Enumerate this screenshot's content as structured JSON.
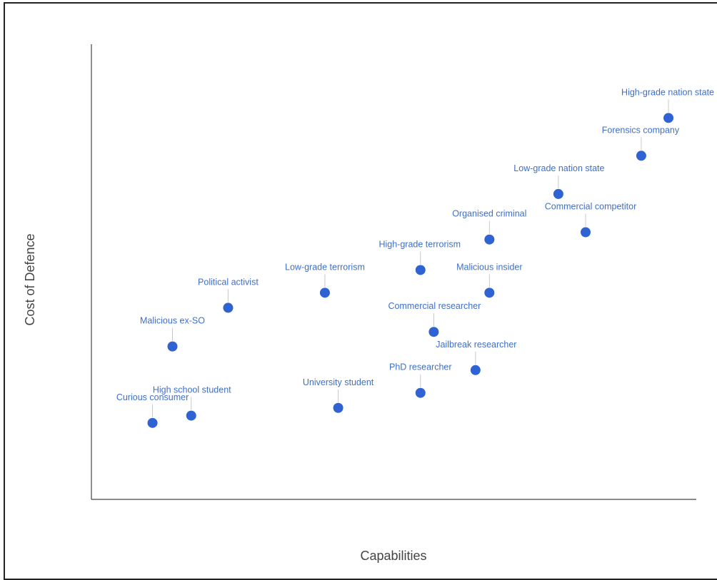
{
  "chart_data": {
    "type": "scatter",
    "xlabel": "Capabilities",
    "ylabel": "Cost of Defence",
    "xlim": [
      0,
      100
    ],
    "ylim": [
      0,
      100
    ],
    "grid": false,
    "legend": "none",
    "colors": {
      "point": "#2f62d3",
      "label": "#3f6fc8",
      "leader": "#c8c8c8",
      "axis": "#444444"
    },
    "points": [
      {
        "name": "High-grade nation state",
        "x": 95.4,
        "y": 83.8
      },
      {
        "name": "Forensics company",
        "x": 90.9,
        "y": 75.5
      },
      {
        "name": "Low-grade nation state",
        "x": 77.2,
        "y": 67.1
      },
      {
        "name": "Commercial competitor",
        "x": 81.7,
        "y": 58.7
      },
      {
        "name": "Organised criminal",
        "x": 65.8,
        "y": 57.1
      },
      {
        "name": "High-grade terrorism",
        "x": 54.4,
        "y": 50.4
      },
      {
        "name": "Malicious insider",
        "x": 65.8,
        "y": 45.4
      },
      {
        "name": "Low-grade terrorism",
        "x": 38.6,
        "y": 45.4
      },
      {
        "name": "Political activist",
        "x": 22.6,
        "y": 42.1
      },
      {
        "name": "Commercial researcher",
        "x": 56.6,
        "y": 36.8
      },
      {
        "name": "Malicious ex-SO",
        "x": 13.4,
        "y": 33.6
      },
      {
        "name": "Jailbreak researcher",
        "x": 63.5,
        "y": 28.4
      },
      {
        "name": "PhD researcher",
        "x": 54.4,
        "y": 23.4
      },
      {
        "name": "University student",
        "x": 40.8,
        "y": 20.1
      },
      {
        "name": "High school student",
        "x": 16.5,
        "y": 18.4
      },
      {
        "name": "Curious consumer",
        "x": 10.1,
        "y": 16.8
      }
    ]
  }
}
